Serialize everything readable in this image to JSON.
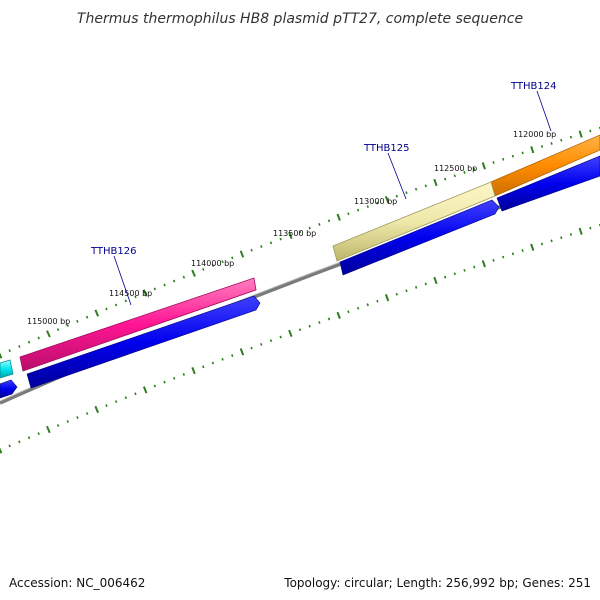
{
  "title": "Thermus thermophilus HB8 plasmid pTT27, complete sequence",
  "footer": {
    "accession": "Accession: NC_006462",
    "summary": "Topology: circular; Length: 256,992 bp; Genes: 251"
  },
  "colors": {
    "background": "#ffffff",
    "backbone": "#7a7a7a",
    "tick": "#2e7d1e",
    "gene_label": "#00008b",
    "cds": "#0000ee"
  },
  "tick_labels": [
    "112000 bp",
    "112500 bp",
    "113000 bp",
    "113500 bp",
    "114000 bp",
    "114500 bp",
    "115000 bp"
  ],
  "genes": [
    {
      "name": "TTHB124",
      "color": "#ff8c00",
      "strand": "forward"
    },
    {
      "name": "TTHB125",
      "color": "#eee8aa",
      "strand": "forward"
    },
    {
      "name": "TTHB126",
      "color": "#ff1493",
      "strand": "forward"
    },
    {
      "name": "",
      "color": "#00e5ee",
      "strand": "forward"
    }
  ]
}
